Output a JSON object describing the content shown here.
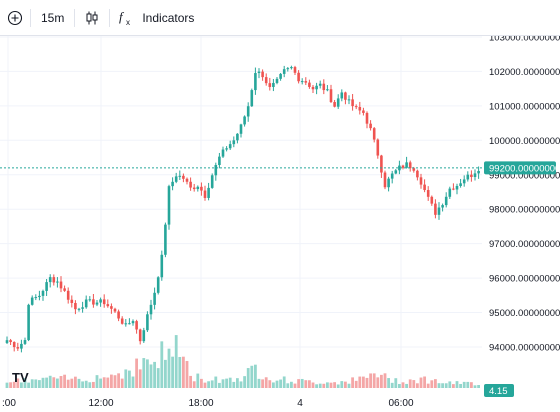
{
  "toolbar": {
    "add_icon": "plus-circle-icon",
    "interval": "15m",
    "chart_type_icon": "candlestick-icon",
    "indicators_icon": "fx-icon",
    "indicators_label": "Indicators"
  },
  "colors": {
    "up": "#26a69a",
    "down": "#ef5350",
    "vol_up": "#93d6cc",
    "vol_down": "#f4a6a6",
    "grid": "#f0f3fa",
    "price_line": "#26a69a"
  },
  "current_price_tag": "99200.00000000",
  "volume_tag": "4.15",
  "logo": "TV",
  "chart_data": {
    "type": "candlestick",
    "price_axis_labels": [
      "103000.00000000",
      "102000.00000000",
      "101000.00000000",
      "100000.00000000",
      "99000.00000000",
      "98000.00000000",
      "97000.00000000",
      "96000.00000000",
      "95000.00000000",
      "94000.00000000"
    ],
    "price_axis_values": [
      103000,
      102000,
      101000,
      100000,
      99000,
      98000,
      97000,
      96000,
      95000,
      94000
    ],
    "time_axis_labels": [
      ":00",
      "12:00",
      "18:00",
      "4",
      "06:00"
    ],
    "current_price": 99200,
    "anchors": [
      [
        0,
        94200
      ],
      [
        3,
        94000
      ],
      [
        5,
        94200
      ],
      [
        6,
        95300
      ],
      [
        9,
        95500
      ],
      [
        12,
        96000
      ],
      [
        14,
        95900
      ],
      [
        16,
        95600
      ],
      [
        19,
        95100
      ],
      [
        22,
        95300
      ],
      [
        24,
        95300
      ],
      [
        27,
        95300
      ],
      [
        30,
        95000
      ],
      [
        33,
        94600
      ],
      [
        35,
        94800
      ],
      [
        37,
        94200
      ],
      [
        39,
        94900
      ],
      [
        41,
        95600
      ],
      [
        43,
        96600
      ],
      [
        45,
        98600
      ],
      [
        47,
        99000
      ],
      [
        49,
        98900
      ],
      [
        51,
        98600
      ],
      [
        53,
        98700
      ],
      [
        55,
        98400
      ],
      [
        57,
        99000
      ],
      [
        59,
        99500
      ],
      [
        61,
        99800
      ],
      [
        63,
        100000
      ],
      [
        65,
        100400
      ],
      [
        67,
        101000
      ],
      [
        69,
        102000
      ],
      [
        71,
        101900
      ],
      [
        73,
        101500
      ],
      [
        75,
        101700
      ],
      [
        77,
        102000
      ],
      [
        79,
        102100
      ],
      [
        81,
        101800
      ],
      [
        83,
        101700
      ],
      [
        85,
        101500
      ],
      [
        87,
        101600
      ],
      [
        89,
        101400
      ],
      [
        91,
        101000
      ],
      [
        93,
        101400
      ],
      [
        95,
        101100
      ],
      [
        97,
        100900
      ],
      [
        99,
        100800
      ],
      [
        101,
        100300
      ],
      [
        103,
        99600
      ],
      [
        105,
        98700
      ],
      [
        107,
        99000
      ],
      [
        109,
        99200
      ],
      [
        111,
        99300
      ],
      [
        113,
        99200
      ],
      [
        115,
        98800
      ],
      [
        117,
        98300
      ],
      [
        119,
        97900
      ],
      [
        121,
        98200
      ],
      [
        123,
        98600
      ],
      [
        125,
        98700
      ],
      [
        127,
        98900
      ],
      [
        129,
        99000
      ],
      [
        131,
        99200
      ]
    ],
    "volume_anchors": [
      [
        0,
        1
      ],
      [
        10,
        1.5
      ],
      [
        20,
        1.6
      ],
      [
        30,
        2.2
      ],
      [
        33,
        3
      ],
      [
        37,
        4
      ],
      [
        40,
        4.5
      ],
      [
        43,
        5.5
      ],
      [
        45,
        6
      ],
      [
        47,
        7.5
      ],
      [
        49,
        5
      ],
      [
        51,
        2
      ],
      [
        55,
        1.5
      ],
      [
        60,
        1.5
      ],
      [
        65,
        1.8
      ],
      [
        67,
        2.5
      ],
      [
        69,
        3.2
      ],
      [
        71,
        2.5
      ],
      [
        75,
        1.5
      ],
      [
        80,
        1.2
      ],
      [
        85,
        1
      ],
      [
        90,
        1
      ],
      [
        95,
        1.2
      ],
      [
        100,
        1.6
      ],
      [
        102,
        2.8
      ],
      [
        104,
        2
      ],
      [
        106,
        1.5
      ],
      [
        110,
        1.2
      ],
      [
        115,
        1.5
      ],
      [
        118,
        1.3
      ],
      [
        123,
        0.8
      ],
      [
        131,
        0.8
      ]
    ]
  }
}
